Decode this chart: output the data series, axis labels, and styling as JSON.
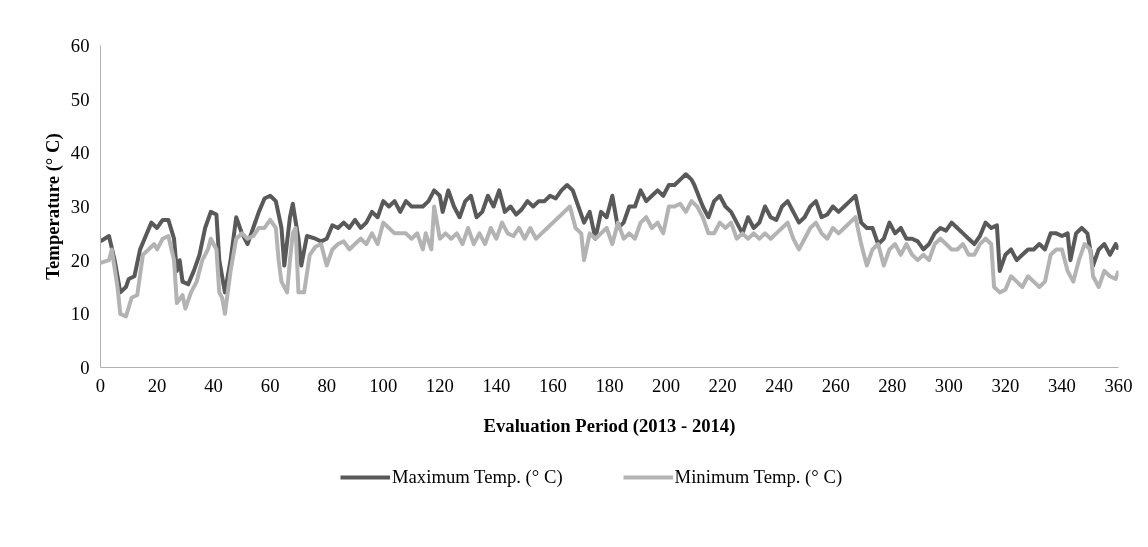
{
  "chart_data": {
    "type": "line",
    "xlabel": "Evaluation Period (2013 - 2014)",
    "ylabel": "Temperature (° C)",
    "xlim": [
      0,
      360
    ],
    "ylim": [
      0,
      60
    ],
    "xticks": [
      0,
      20,
      40,
      60,
      80,
      100,
      120,
      140,
      160,
      180,
      200,
      220,
      240,
      260,
      280,
      300,
      320,
      340,
      360
    ],
    "yticks": [
      0,
      10,
      20,
      30,
      40,
      50,
      60
    ],
    "grid": false,
    "legend": "bottom",
    "marker": "none",
    "line_style": "solid",
    "series": [
      {
        "name": "Maximum Temp. (° C)",
        "color": "#595959",
        "x": [
          0,
          3,
          5,
          7,
          9,
          10,
          12,
          14,
          16,
          18,
          20,
          22,
          24,
          26,
          27,
          28,
          29,
          31,
          33,
          35,
          37,
          39,
          41,
          42,
          44,
          46,
          48,
          50,
          52,
          54,
          56,
          58,
          60,
          62,
          64,
          65,
          67,
          68,
          70,
          71,
          73,
          76,
          78,
          80,
          82,
          84,
          86,
          88,
          90,
          92,
          94,
          96,
          98,
          100,
          102,
          104,
          106,
          108,
          110,
          112,
          114,
          116,
          118,
          120,
          121,
          123,
          125,
          127,
          129,
          131,
          133,
          135,
          137,
          139,
          141,
          143,
          145,
          147,
          149,
          151,
          153,
          155,
          157,
          159,
          161,
          163,
          165,
          167,
          169,
          171,
          173,
          175,
          177,
          179,
          181,
          183,
          185,
          187,
          189,
          191,
          193,
          195,
          197,
          199,
          201,
          203,
          205,
          207,
          209,
          210,
          213,
          215,
          217,
          219,
          221,
          223,
          225,
          227,
          229,
          231,
          233,
          235,
          237,
          239,
          241,
          243,
          245,
          247,
          249,
          251,
          253,
          255,
          257,
          259,
          261,
          263,
          265,
          267,
          269,
          271,
          273,
          275,
          277,
          279,
          281,
          283,
          285,
          287,
          289,
          291,
          293,
          295,
          297,
          299,
          301,
          303,
          305,
          307,
          309,
          311,
          313,
          315,
          317,
          318,
          320,
          322,
          324,
          326,
          328,
          330,
          332,
          334,
          336,
          338,
          340,
          342,
          343,
          345,
          347,
          349,
          351,
          353,
          355,
          357,
          359,
          360
        ],
        "values": [
          23.5,
          24.5,
          20,
          14,
          15,
          16.5,
          17,
          22,
          24.5,
          27,
          26,
          27.5,
          27.5,
          24,
          18,
          20,
          16,
          15.5,
          18,
          21,
          26,
          29,
          28.5,
          20,
          14,
          20,
          28,
          25,
          23,
          26,
          29,
          31.5,
          32,
          31,
          26,
          19,
          28,
          30.5,
          24,
          19,
          24.5,
          24,
          23.5,
          24,
          26.5,
          26,
          27,
          26,
          27.5,
          26,
          27,
          29,
          28,
          31,
          30,
          31,
          29,
          31,
          30,
          30,
          30,
          31,
          33,
          32,
          29,
          33,
          30,
          28,
          31,
          32,
          28,
          29,
          32,
          30,
          33,
          29,
          30,
          28.5,
          29.5,
          31,
          30,
          31,
          31,
          32,
          31.5,
          33,
          34,
          33,
          30,
          27,
          29,
          24,
          29,
          28,
          32,
          26,
          27,
          30,
          30,
          33,
          31,
          32,
          33,
          32,
          34,
          34,
          35,
          36,
          35,
          34,
          30,
          28,
          31,
          32,
          30,
          29,
          27,
          25,
          28,
          26,
          27,
          30,
          28,
          27.5,
          30,
          31,
          29,
          27,
          28,
          30,
          31,
          28,
          28.5,
          30,
          29,
          30,
          31,
          32,
          27,
          26,
          26,
          23,
          24,
          27,
          25,
          26,
          24,
          24,
          23.5,
          22,
          23,
          25,
          26,
          25.5,
          27,
          26,
          25,
          24,
          23,
          24.5,
          27,
          26,
          26.5,
          18,
          21,
          22,
          20,
          21,
          22,
          22,
          23,
          22,
          25,
          25,
          24.5,
          25,
          20,
          25,
          26,
          25,
          19,
          22,
          23,
          21,
          23,
          22
        ]
      },
      {
        "name": "Minimum Temp. (° C)",
        "color": "#b3b3b3",
        "x": [
          0,
          3,
          4,
          6,
          7,
          9,
          11,
          13,
          15,
          17,
          19,
          20,
          22,
          24,
          26,
          27,
          29,
          30,
          32,
          34,
          36,
          38,
          39,
          41,
          42,
          43,
          44,
          46,
          48,
          50,
          52,
          54,
          56,
          58,
          60,
          62,
          63,
          64,
          66,
          67,
          68,
          69,
          70,
          72,
          74,
          76,
          78,
          80,
          82,
          84,
          86,
          88,
          90,
          92,
          94,
          96,
          98,
          100,
          102,
          104,
          106,
          108,
          110,
          112,
          114,
          115,
          117,
          118,
          120,
          122,
          124,
          126,
          128,
          130,
          132,
          134,
          136,
          138,
          140,
          142,
          144,
          146,
          148,
          150,
          152,
          154,
          156,
          158,
          160,
          162,
          164,
          166,
          168,
          170,
          171,
          173,
          175,
          177,
          179,
          181,
          183,
          185,
          187,
          189,
          191,
          193,
          195,
          197,
          199,
          201,
          203,
          205,
          207,
          209,
          211,
          213,
          215,
          217,
          219,
          221,
          223,
          225,
          227,
          229,
          231,
          233,
          235,
          237,
          239,
          241,
          243,
          245,
          247,
          249,
          251,
          253,
          255,
          257,
          259,
          261,
          263,
          265,
          267,
          269,
          271,
          273,
          275,
          277,
          279,
          281,
          283,
          285,
          287,
          289,
          291,
          293,
          295,
          297,
          299,
          301,
          303,
          305,
          307,
          309,
          311,
          313,
          315,
          316,
          318,
          320,
          322,
          324,
          326,
          328,
          330,
          332,
          334,
          336,
          338,
          340,
          342,
          344,
          346,
          348,
          350,
          351,
          353,
          355,
          357,
          359,
          360
        ],
        "values": [
          19.5,
          20,
          22,
          15,
          10,
          9.5,
          13,
          13.5,
          21,
          22,
          23,
          22,
          24,
          24.5,
          20,
          12,
          13.5,
          11,
          14,
          16,
          20,
          22,
          24,
          22,
          14,
          13,
          10,
          18,
          24,
          25,
          24,
          24.5,
          26,
          26,
          27.5,
          26,
          20,
          16,
          14,
          20,
          25,
          26,
          14,
          14,
          21,
          22.5,
          23,
          19,
          22,
          23,
          23.5,
          22,
          23,
          24,
          23,
          25,
          23,
          27,
          26,
          25,
          25,
          25,
          24,
          25,
          22,
          25,
          22,
          30,
          24,
          25,
          24,
          25,
          23,
          26,
          23,
          25,
          23,
          26,
          24,
          27,
          25,
          24.5,
          26,
          24,
          26,
          24,
          25,
          26,
          27,
          28,
          29,
          30,
          26,
          25,
          20,
          25,
          24,
          25,
          26,
          23,
          27,
          24,
          25,
          24,
          27,
          28,
          26,
          27,
          25,
          30,
          30,
          30.5,
          29,
          31,
          30,
          28,
          25,
          25,
          27,
          26,
          27,
          24,
          25,
          24,
          25,
          24,
          25,
          24,
          25,
          26,
          27,
          24,
          22,
          24,
          26,
          27,
          25,
          24,
          26,
          25,
          26,
          27,
          28,
          23,
          19,
          22,
          23,
          19,
          22,
          23,
          21,
          23,
          21,
          20,
          21,
          20,
          23,
          24,
          23,
          22,
          22,
          23,
          21,
          21,
          23,
          24,
          23,
          15,
          14,
          14.5,
          17,
          16,
          15,
          17,
          16,
          15,
          16,
          21,
          22,
          22,
          18,
          16,
          20,
          23,
          22,
          17,
          15,
          18,
          17,
          16.5,
          18
        ]
      }
    ]
  }
}
